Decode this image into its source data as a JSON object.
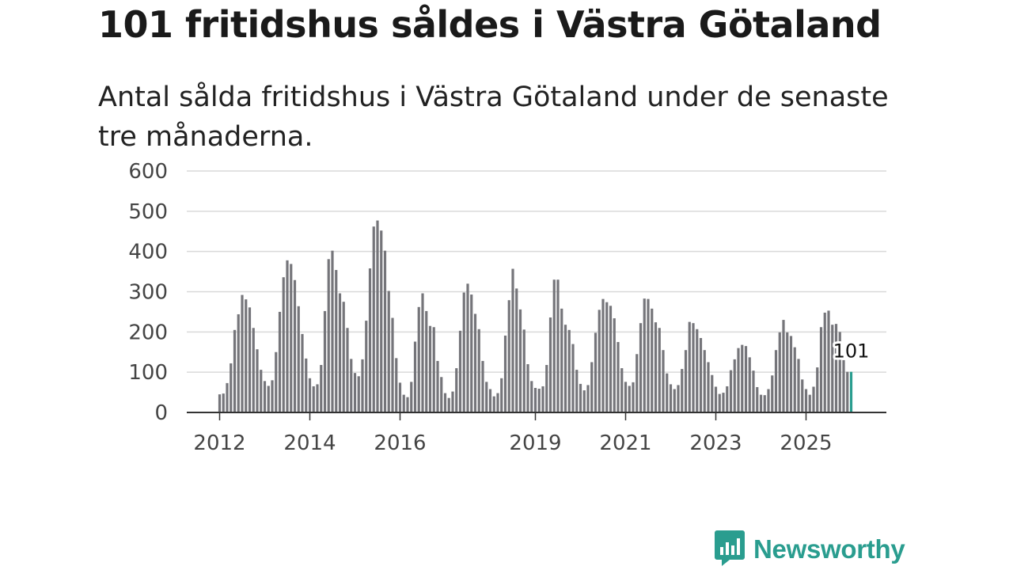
{
  "header": {
    "title": "101 fritidshus såldes i Västra Götaland",
    "subtitle": "Antal sålda fritidshus i Västra Götaland under de senaste tre månaderna."
  },
  "brand": {
    "name": "Newsworthy",
    "icon": "newsworthy-logo-icon",
    "color": "#2a9d8f"
  },
  "chart_data": {
    "type": "bar",
    "title": "101 fritidshus såldes i Västra Götaland",
    "subtitle": "Antal sålda fritidshus i Västra Götaland under de senaste tre månaderna.",
    "xlabel": "",
    "ylabel": "",
    "ylim": [
      0,
      600
    ],
    "yticks": [
      0,
      100,
      200,
      300,
      400,
      500,
      600
    ],
    "grid": true,
    "xticks": [
      {
        "label": "2012",
        "index": 0
      },
      {
        "label": "2014",
        "index": 24
      },
      {
        "label": "2016",
        "index": 48
      },
      {
        "label": "2019",
        "index": 84
      },
      {
        "label": "2021",
        "index": 108
      },
      {
        "label": "2023",
        "index": 132
      },
      {
        "label": "2025",
        "index": 156
      }
    ],
    "period_start": "2012-01",
    "period_end": "2026-01",
    "highlight": {
      "index": 168,
      "value": 101,
      "label": "101",
      "color": "#2a9d8f"
    },
    "bar_color": "#75757a",
    "values": [
      45,
      47,
      73,
      122,
      205,
      244,
      292,
      281,
      261,
      210,
      157,
      106,
      78,
      66,
      80,
      150,
      250,
      336,
      378,
      369,
      329,
      264,
      195,
      134,
      85,
      65,
      70,
      118,
      252,
      381,
      402,
      354,
      296,
      275,
      210,
      133,
      98,
      90,
      132,
      228,
      358,
      462,
      477,
      452,
      402,
      302,
      235,
      135,
      74,
      44,
      38,
      76,
      176,
      262,
      296,
      252,
      215,
      212,
      128,
      88,
      48,
      36,
      52,
      110,
      203,
      298,
      320,
      293,
      245,
      207,
      128,
      76,
      58,
      40,
      48,
      85,
      191,
      279,
      357,
      308,
      256,
      206,
      120,
      78,
      61,
      59,
      65,
      118,
      236,
      330,
      330,
      258,
      218,
      205,
      170,
      106,
      71,
      55,
      68,
      125,
      198,
      255,
      282,
      274,
      265,
      234,
      175,
      110,
      76,
      66,
      75,
      145,
      222,
      283,
      282,
      258,
      224,
      210,
      155,
      97,
      70,
      58,
      68,
      108,
      155,
      225,
      222,
      207,
      185,
      155,
      125,
      93,
      64,
      46,
      49,
      65,
      105,
      132,
      160,
      168,
      165,
      137,
      104,
      63,
      44,
      43,
      58,
      92,
      155,
      199,
      230,
      199,
      190,
      162,
      133,
      82,
      58,
      44,
      64,
      112,
      212,
      248,
      253,
      218,
      220,
      200,
      130,
      101,
      101
    ]
  }
}
